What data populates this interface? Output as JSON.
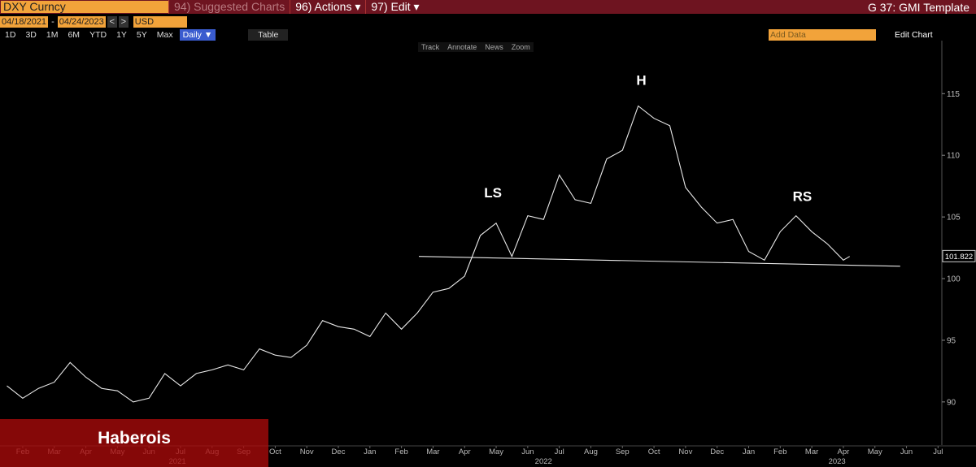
{
  "toolbar": {
    "ticker": "DXY Curncy",
    "menus": [
      "94) Suggested Charts",
      "96) Actions ▾",
      "97) Edit ▾"
    ],
    "template": "G 37: GMI Template"
  },
  "controls": {
    "start_date": "04/18/2021",
    "separator": "-",
    "end_date": "04/24/2023",
    "prev": "<",
    "next": ">",
    "currency": "USD",
    "periods": [
      "1D",
      "3D",
      "1M",
      "6M",
      "YTD",
      "1Y",
      "5Y",
      "Max"
    ],
    "frequency": "Daily ▼",
    "table": "Table",
    "add_data": "Add Data",
    "edit_chart": "Edit Chart",
    "tools": [
      "Track",
      "Annotate",
      "News",
      "Zoom"
    ]
  },
  "watermark": "Haberois",
  "chart_data": {
    "type": "line",
    "xlim": [
      -0.72,
      29.12
    ],
    "ylim": [
      86.5,
      119.3
    ],
    "yticks": [
      90,
      95,
      100,
      105,
      110,
      115
    ],
    "xticks": [
      {
        "value": 0,
        "label": "Feb"
      },
      {
        "value": 1,
        "label": "Mar"
      },
      {
        "value": 2,
        "label": "Apr"
      },
      {
        "value": 3,
        "label": "May"
      },
      {
        "value": 4,
        "label": "Jun"
      },
      {
        "value": 5,
        "label": "Jul"
      },
      {
        "value": 6,
        "label": "Aug"
      },
      {
        "value": 7,
        "label": "Sep"
      },
      {
        "value": 8,
        "label": "Oct"
      },
      {
        "value": 9,
        "label": "Nov"
      },
      {
        "value": 10,
        "label": "Dec"
      },
      {
        "value": 11,
        "label": "Jan"
      },
      {
        "value": 12,
        "label": "Feb"
      },
      {
        "value": 13,
        "label": "Mar"
      },
      {
        "value": 14,
        "label": "Apr"
      },
      {
        "value": 15,
        "label": "May"
      },
      {
        "value": 16,
        "label": "Jun"
      },
      {
        "value": 17,
        "label": "Jul"
      },
      {
        "value": 18,
        "label": "Aug"
      },
      {
        "value": 19,
        "label": "Sep"
      },
      {
        "value": 20,
        "label": "Oct"
      },
      {
        "value": 21,
        "label": "Nov"
      },
      {
        "value": 22,
        "label": "Dec"
      },
      {
        "value": 23,
        "label": "Jan"
      },
      {
        "value": 24,
        "label": "Feb"
      },
      {
        "value": 25,
        "label": "Mar"
      },
      {
        "value": 26,
        "label": "Apr"
      },
      {
        "value": 27,
        "label": "May"
      },
      {
        "value": 28,
        "label": "Jun"
      },
      {
        "value": 29,
        "label": "Jul"
      }
    ],
    "year_labels": [
      {
        "value": 4.9,
        "label": "2021"
      },
      {
        "value": 16.5,
        "label": "2022"
      },
      {
        "value": 25.8,
        "label": "2023"
      }
    ],
    "series": [
      {
        "color": "#e8e8e8",
        "x": [
          -0.5,
          0,
          0.5,
          1,
          1.5,
          2,
          2.5,
          3,
          3.5,
          4,
          4.5,
          5,
          5.5,
          6,
          6.5,
          7,
          7.5,
          8,
          8.5,
          9,
          9.5,
          10,
          10.5,
          11,
          11.5,
          12,
          12.5,
          13,
          13.5,
          14,
          14.5,
          15,
          15.5,
          16,
          16.5,
          17,
          17.5,
          18,
          18.5,
          19,
          19.5,
          20,
          20.5,
          21,
          21.5,
          22,
          22.5,
          23,
          23.5,
          24,
          24.5,
          25,
          25.5,
          26,
          26.2
        ],
        "values": [
          91.3,
          90.3,
          91.1,
          91.6,
          93.2,
          92.0,
          91.1,
          90.9,
          90.0,
          90.3,
          92.3,
          91.3,
          92.3,
          92.6,
          93.0,
          92.6,
          94.3,
          93.8,
          93.6,
          94.6,
          96.6,
          96.1,
          95.9,
          95.3,
          97.2,
          95.9,
          97.2,
          98.9,
          99.2,
          100.2,
          103.5,
          104.5,
          101.8,
          105.1,
          104.8,
          108.4,
          106.4,
          106.1,
          109.7,
          110.4,
          114.0,
          113.0,
          112.4,
          107.4,
          105.8,
          104.5,
          104.8,
          102.2,
          101.5,
          103.8,
          105.1,
          103.8,
          102.8,
          101.5,
          101.8
        ]
      },
      {
        "color": "#e8e8e8",
        "x": [
          12.55,
          27.8
        ],
        "values": [
          101.8,
          101.0
        ]
      }
    ],
    "annotations": [
      {
        "text": "LS",
        "x": 14.9,
        "y": 106.6
      },
      {
        "text": "H",
        "x": 19.6,
        "y": 115.7
      },
      {
        "text": "RS",
        "x": 24.7,
        "y": 106.3
      }
    ],
    "last_value": 101.822
  }
}
